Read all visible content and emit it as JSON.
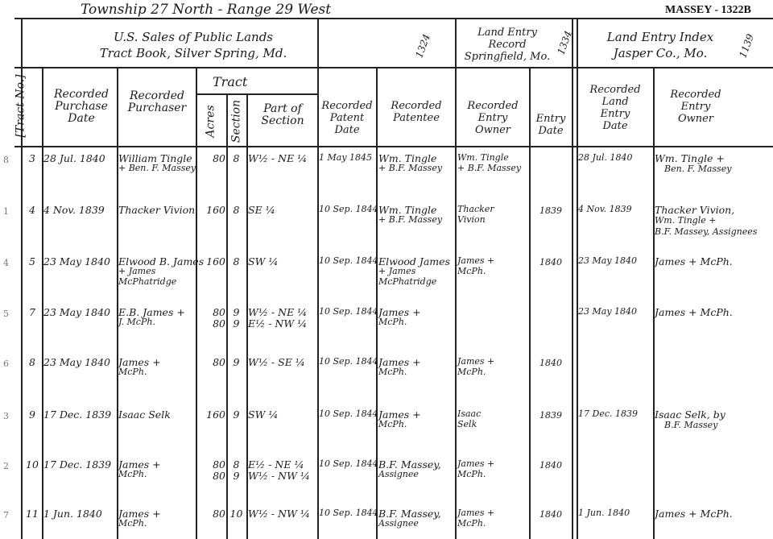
{
  "header": {
    "township": "Township 27 North - Range 29 West",
    "corner_label": "MASSEY - 1322B"
  },
  "sources": {
    "us_sales_line1": "U.S. Sales of Public Lands",
    "us_sales_line2": "Tract Book, Silver Spring, Md.",
    "us_sales_num": "1324",
    "land_entry_line1": "Land Entry",
    "land_entry_line2": "Record",
    "land_entry_line3": "Springfield, Mo.",
    "land_entry_num": "1334",
    "index_line1": "Land Entry Index",
    "index_line2": "Jasper Co., Mo.",
    "index_num": "1139"
  },
  "columns": {
    "tract_no": "[Tract No.]",
    "purchase_date": [
      "Recorded",
      "Purchase",
      "Date"
    ],
    "purchaser": [
      "Recorded",
      "Purchaser"
    ],
    "tract_group": "Tract",
    "acres": "Acres",
    "section": "Section",
    "part": [
      "Part of",
      "Section"
    ],
    "patent_date": [
      "Recorded",
      "Patent",
      "Date"
    ],
    "patentee": [
      "Recorded",
      "Patentee"
    ],
    "entry_owner": [
      "Recorded",
      "Entry",
      "Owner"
    ],
    "entry_date": [
      "Entry",
      "Date"
    ],
    "land_entry_date": [
      "Recorded",
      "Land",
      "Entry",
      "Date"
    ],
    "index_owner": [
      "Recorded",
      "Entry",
      "Owner"
    ]
  },
  "margin_marks": [
    "8",
    "1",
    "4",
    "5",
    "6",
    "3",
    "2",
    "7"
  ],
  "rows": [
    {
      "tract": "3",
      "date": "28 Jul. 1840",
      "purchaser": [
        "William Tingle",
        "+ Ben. F. Massey"
      ],
      "acres": [
        "80"
      ],
      "section": [
        "8"
      ],
      "part": [
        "W½ - NE ¼"
      ],
      "patent_date": "1 May 1845",
      "patentee": [
        "Wm. Tingle",
        "+ B.F. Massey"
      ],
      "entry_owner": [
        "Wm. Tingle",
        "+ B.F. Massey"
      ],
      "entry_date": "",
      "le_date": "28 Jul. 1840",
      "le_owner": [
        "Wm. Tingle +",
        "Ben. F. Massey"
      ]
    },
    {
      "tract": "4",
      "date": "4 Nov. 1839",
      "purchaser": [
        "Thacker Vivion"
      ],
      "acres": [
        "160"
      ],
      "section": [
        "8"
      ],
      "part": [
        "SE ¼"
      ],
      "patent_date": "10 Sep. 1844",
      "patentee": [
        "Wm. Tingle",
        "+ B.F. Massey"
      ],
      "entry_owner": [
        "Thacker",
        "Vivion"
      ],
      "entry_date": "1839",
      "le_date": "4 Nov. 1839",
      "le_owner": [
        "Thacker Vivion,",
        "Wm. Tingle +",
        "B.F. Massey, Assignees"
      ]
    },
    {
      "tract": "5",
      "date": "23 May 1840",
      "purchaser": [
        "Elwood B. James",
        "+ James",
        "McPhatridge"
      ],
      "acres": [
        "160"
      ],
      "section": [
        "8"
      ],
      "part": [
        "SW ¼"
      ],
      "patent_date": "10 Sep. 1844",
      "patentee": [
        "Elwood James",
        "+ James",
        "McPhatridge"
      ],
      "entry_owner": [
        "James +",
        "McPh."
      ],
      "entry_date": "1840",
      "le_date": "23 May 1840",
      "le_owner": [
        "James + McPh."
      ]
    },
    {
      "tract": "7",
      "date": "23 May 1840",
      "purchaser": [
        "E.B. James +",
        "J. McPh."
      ],
      "acres": [
        "80",
        "80"
      ],
      "section": [
        "9",
        "9"
      ],
      "part": [
        "W½ - NE ¼",
        "E½ - NW ¼"
      ],
      "patent_date": "10 Sep. 1844",
      "patentee": [
        "James +",
        "McPh."
      ],
      "entry_owner": [],
      "entry_date": "",
      "le_date": "23 May 1840",
      "le_owner": [
        "James + McPh."
      ]
    },
    {
      "tract": "8",
      "date": "23 May 1840",
      "purchaser": [
        "James +",
        "McPh."
      ],
      "acres": [
        "80"
      ],
      "section": [
        "9"
      ],
      "part": [
        "W½ - SE ¼"
      ],
      "patent_date": "10 Sep. 1844",
      "patentee": [
        "James +",
        "McPh."
      ],
      "entry_owner": [
        "James +",
        "McPh."
      ],
      "entry_date": "1840",
      "le_date": "",
      "le_owner": []
    },
    {
      "tract": "9",
      "date": "17 Dec. 1839",
      "purchaser": [
        "Isaac Selk"
      ],
      "acres": [
        "160"
      ],
      "section": [
        "9"
      ],
      "part": [
        "SW ¼"
      ],
      "patent_date": "10 Sep. 1844",
      "patentee": [
        "James +",
        "McPh."
      ],
      "entry_owner": [
        "Isaac",
        "Selk"
      ],
      "entry_date": "1839",
      "le_date": "17 Dec. 1839",
      "le_owner": [
        "Isaac Selk, by",
        "B.F. Massey"
      ]
    },
    {
      "tract": "10",
      "date": "17 Dec. 1839",
      "purchaser": [
        "James +",
        "McPh."
      ],
      "acres": [
        "80",
        "80"
      ],
      "section": [
        "8",
        "9"
      ],
      "part": [
        "E½ - NE ¼",
        "W½ - NW ¼"
      ],
      "patent_date": "10 Sep. 1844",
      "patentee": [
        "B.F. Massey,",
        "Assignee"
      ],
      "entry_owner": [
        "James +",
        "McPh."
      ],
      "entry_date": "1840",
      "le_date": "",
      "le_owner": []
    },
    {
      "tract": "11",
      "date": "1 Jun. 1840",
      "purchaser": [
        "James +",
        "McPh."
      ],
      "acres": [
        "80"
      ],
      "section": [
        "10"
      ],
      "part": [
        "W½ - NW ¼"
      ],
      "patent_date": "10 Sep. 1844",
      "patentee": [
        "B.F. Massey,",
        "Assignee"
      ],
      "entry_owner": [
        "James +",
        "McPh."
      ],
      "entry_date": "1840",
      "le_date": "1 Jun. 1840",
      "le_owner": [
        "James + McPh."
      ]
    }
  ]
}
